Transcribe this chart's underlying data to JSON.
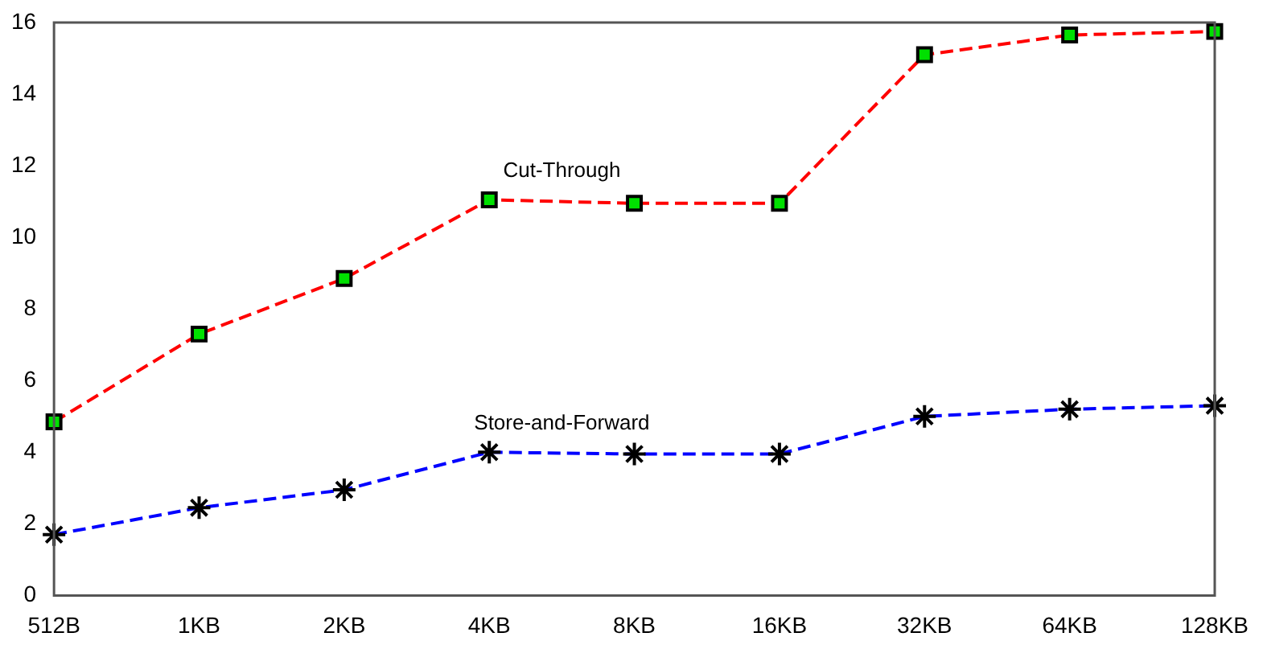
{
  "chart_data": {
    "type": "line",
    "categories": [
      "512B",
      "1KB",
      "2KB",
      "4KB",
      "8KB",
      "16KB",
      "32KB",
      "64KB",
      "128KB"
    ],
    "series": [
      {
        "name": "Cut-Through",
        "color": "#ff0000",
        "marker": "square",
        "line_style": "dashed",
        "values": [
          4.85,
          7.3,
          8.85,
          11.05,
          10.95,
          10.95,
          15.1,
          15.65,
          15.75
        ]
      },
      {
        "name": "Store-and-Forward",
        "color": "#0000ff",
        "marker": "cross",
        "line_style": "dashed",
        "values": [
          1.7,
          2.45,
          2.95,
          4.0,
          3.95,
          3.95,
          5.0,
          5.2,
          5.3
        ]
      }
    ],
    "ylim": [
      0,
      16
    ],
    "yticks": [
      0,
      2,
      4,
      6,
      8,
      10,
      12,
      14,
      16
    ],
    "grid": false,
    "legend": false
  }
}
